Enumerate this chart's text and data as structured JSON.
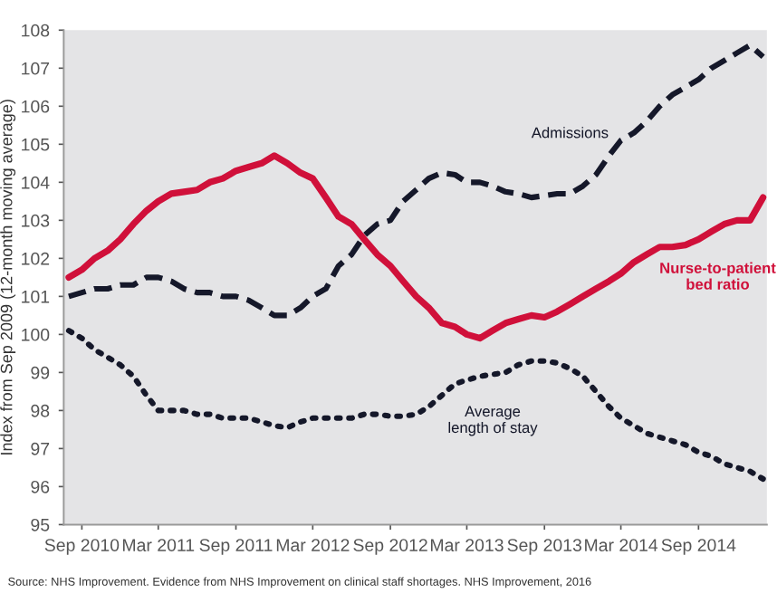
{
  "chart_data": {
    "type": "line",
    "ylabel": "Index from Sep 2009 (12-month moving average)",
    "annotations": [
      "Source: NHS Improvement. Evidence from NHS Improvement on clinical staff shortages. NHS Improvement, 2016"
    ],
    "x": [
      "2010-08",
      "2010-09",
      "2010-10",
      "2010-11",
      "2010-12",
      "2011-01",
      "2011-02",
      "2011-03",
      "2011-04",
      "2011-05",
      "2011-06",
      "2011-07",
      "2011-08",
      "2011-09",
      "2011-10",
      "2011-11",
      "2011-12",
      "2012-01",
      "2012-02",
      "2012-03",
      "2012-04",
      "2012-05",
      "2012-06",
      "2012-07",
      "2012-08",
      "2012-09",
      "2012-10",
      "2012-11",
      "2012-12",
      "2013-01",
      "2013-02",
      "2013-03",
      "2013-04",
      "2013-05",
      "2013-06",
      "2013-07",
      "2013-08",
      "2013-09",
      "2013-10",
      "2013-11",
      "2013-12",
      "2014-01",
      "2014-02",
      "2014-03",
      "2014-04",
      "2014-05",
      "2014-06",
      "2014-07",
      "2014-08",
      "2014-09",
      "2014-10",
      "2014-11",
      "2014-12",
      "2015-01",
      "2015-02"
    ],
    "series": [
      {
        "name": "Admissions",
        "color": "#15182a",
        "line_style": "dashed",
        "values": [
          101.0,
          101.1,
          101.2,
          101.2,
          101.3,
          101.3,
          101.5,
          101.5,
          101.4,
          101.2,
          101.1,
          101.1,
          101.0,
          101.0,
          100.9,
          100.7,
          100.5,
          100.5,
          100.7,
          101.0,
          101.2,
          101.8,
          102.1,
          102.6,
          102.9,
          103.0,
          103.5,
          103.8,
          104.1,
          104.25,
          104.2,
          104.0,
          104.0,
          103.9,
          103.75,
          103.7,
          103.6,
          103.65,
          103.7,
          103.7,
          103.9,
          104.2,
          104.7,
          105.1,
          105.3,
          105.6,
          106.0,
          106.3,
          106.5,
          106.7,
          107.0,
          107.2,
          107.4,
          107.6,
          107.3
        ]
      },
      {
        "name": "Nurse-to-patient\nbed ratio",
        "color": "#d0103a",
        "line_style": "solid",
        "values": [
          101.5,
          101.7,
          102.0,
          102.2,
          102.5,
          102.9,
          103.25,
          103.5,
          103.7,
          103.75,
          103.8,
          104.0,
          104.1,
          104.3,
          104.4,
          104.5,
          104.7,
          104.5,
          104.25,
          104.1,
          103.6,
          103.1,
          102.9,
          102.5,
          102.1,
          101.8,
          101.4,
          101.0,
          100.7,
          100.3,
          100.2,
          100.0,
          99.9,
          100.1,
          100.3,
          100.4,
          100.5,
          100.45,
          100.6,
          100.8,
          101.0,
          101.2,
          101.4,
          101.6,
          101.9,
          102.1,
          102.3,
          102.3,
          102.35,
          102.5,
          102.7,
          102.9,
          103.0,
          103.0,
          103.6
        ]
      },
      {
        "name": "Average\nlength of stay",
        "color": "#15182a",
        "line_style": "dotted",
        "values": [
          100.1,
          99.9,
          99.6,
          99.4,
          99.2,
          98.9,
          98.4,
          98.0,
          98.0,
          98.0,
          97.9,
          97.9,
          97.8,
          97.8,
          97.8,
          97.7,
          97.6,
          97.55,
          97.7,
          97.8,
          97.8,
          97.8,
          97.8,
          97.9,
          97.9,
          97.85,
          97.85,
          97.9,
          98.1,
          98.4,
          98.7,
          98.8,
          98.9,
          98.95,
          99.0,
          99.2,
          99.3,
          99.3,
          99.25,
          99.1,
          98.9,
          98.5,
          98.1,
          97.8,
          97.6,
          97.4,
          97.3,
          97.2,
          97.1,
          96.9,
          96.8,
          96.6,
          96.5,
          96.4,
          96.2
        ]
      }
    ],
    "xlim": [
      "2010-07-20",
      "2015-02-10"
    ],
    "xticks": [
      {
        "value": "2010-09",
        "label": "Sep 2010"
      },
      {
        "value": "2011-03",
        "label": "Mar 2011"
      },
      {
        "value": "2011-09",
        "label": "Sep 2011"
      },
      {
        "value": "2012-03",
        "label": "Mar 2012"
      },
      {
        "value": "2012-09",
        "label": "Sep 2012"
      },
      {
        "value": "2013-03",
        "label": "Mar 2013"
      },
      {
        "value": "2013-09",
        "label": "Sep 2013"
      },
      {
        "value": "2014-03",
        "label": "Mar 2014"
      },
      {
        "value": "2014-09",
        "label": "Sep 2014"
      }
    ],
    "ylim": [
      95,
      108
    ],
    "yticks": [
      95,
      96,
      97,
      98,
      99,
      100,
      101,
      102,
      103,
      104,
      105,
      106,
      107,
      108
    ],
    "grid": false,
    "legend": false,
    "marker": "none"
  }
}
